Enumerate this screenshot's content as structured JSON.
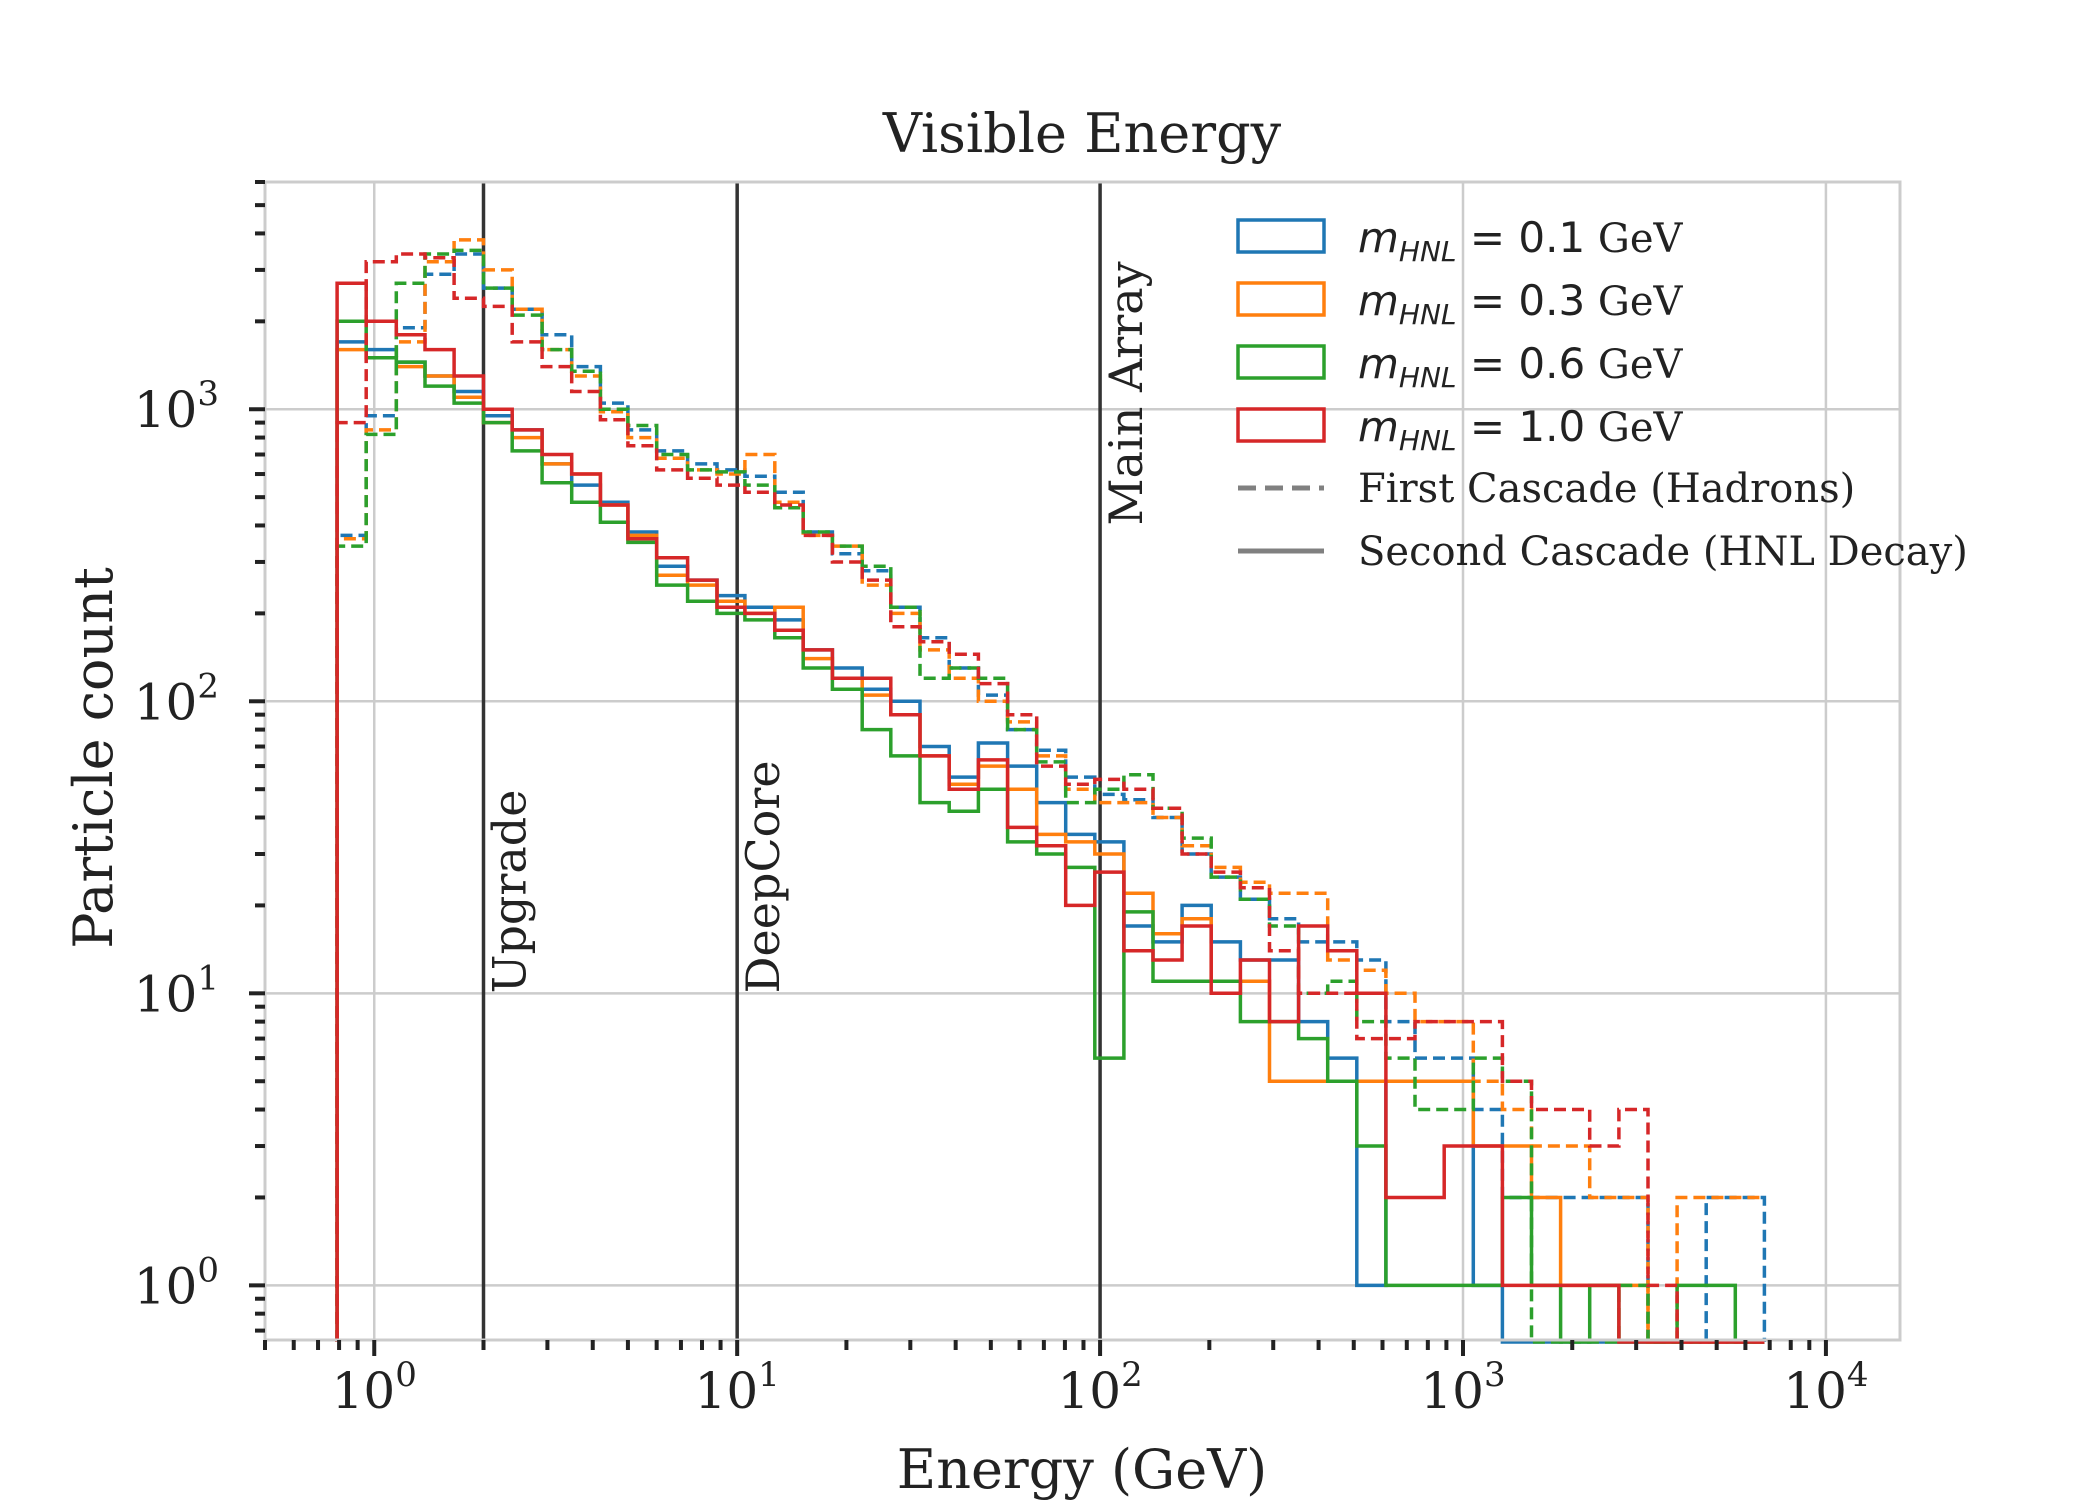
{
  "chart_data": {
    "type": "line",
    "title": "Visible Energy",
    "xlabel": "Energy (GeV)",
    "ylabel": "Particle count",
    "x_scale": "log",
    "y_scale": "log",
    "xlim": [
      0.5,
      16000
    ],
    "ylim": [
      0.65,
      6000
    ],
    "grid": true,
    "legend_position": "top-right",
    "x_ticks": [
      {
        "value": 1,
        "base": "10",
        "exp": "0"
      },
      {
        "value": 10,
        "base": "10",
        "exp": "1"
      },
      {
        "value": 100,
        "base": "10",
        "exp": "2"
      },
      {
        "value": 1000,
        "base": "10",
        "exp": "3"
      },
      {
        "value": 10000,
        "base": "10",
        "exp": "4"
      }
    ],
    "y_ticks": [
      {
        "value": 1,
        "base": "10",
        "exp": "0"
      },
      {
        "value": 10,
        "base": "10",
        "exp": "1"
      },
      {
        "value": 100,
        "base": "10",
        "exp": "2"
      },
      {
        "value": 1000,
        "base": "10",
        "exp": "3"
      }
    ],
    "vlines": [
      {
        "x": 2,
        "label": "Upgrade",
        "label_y": 10
      },
      {
        "x": 10,
        "label": "DeepCore",
        "label_y": 10
      },
      {
        "x": 100,
        "label": "Main Array",
        "label_y": 400
      }
    ],
    "legend": [
      {
        "type": "mass",
        "prefix": "m",
        "sub": "HNL",
        "value": " = 0.1",
        "unit": " GeV",
        "color": "#1f77b4"
      },
      {
        "type": "mass",
        "prefix": "m",
        "sub": "HNL",
        "value": " = 0.3",
        "unit": " GeV",
        "color": "#ff7f0e"
      },
      {
        "type": "mass",
        "prefix": "m",
        "sub": "HNL",
        "value": " = 0.6",
        "unit": " GeV",
        "color": "#2ca02c"
      },
      {
        "type": "mass",
        "prefix": "m",
        "sub": "HNL",
        "value": " = 1.0",
        "unit": " GeV",
        "color": "#d62728"
      },
      {
        "type": "style",
        "label": "First Cascade (Hadrons)",
        "dash": true,
        "color": "#808080"
      },
      {
        "type": "style",
        "label": "Second Cascade (HNL Decay)",
        "dash": false,
        "color": "#808080"
      }
    ],
    "bin_edges": [
      0.79,
      0.95,
      1.15,
      1.38,
      1.66,
      2.0,
      2.4,
      2.9,
      3.5,
      4.2,
      5.0,
      6.0,
      7.3,
      8.8,
      10.5,
      12.7,
      15.2,
      18.3,
      22.1,
      26.5,
      31.9,
      38.4,
      46.2,
      55.6,
      66.9,
      80.4,
      96.7,
      116.3,
      139.9,
      168.3,
      202.4,
      243.5,
      292.9,
      352.3,
      423.8,
      509.8,
      613.2,
      737.6,
      887.3,
      1067.3,
      1283.8,
      1544.3,
      1857.6,
      2234.6,
      2688,
      3233.3,
      3889.3,
      4678.3,
      5627.4,
      6769.1
    ],
    "series": [
      {
        "color": "#1f77b4",
        "dashed": true,
        "values": [
          370,
          950,
          1900,
          2900,
          3400,
          2600,
          2200,
          1800,
          1400,
          1050,
          850,
          720,
          650,
          620,
          590,
          520,
          380,
          320,
          280,
          210,
          165,
          130,
          105,
          80,
          68,
          55,
          48,
          46,
          40,
          30,
          25,
          21,
          18,
          15,
          15,
          13,
          8,
          6,
          6,
          4,
          2,
          2,
          2,
          2,
          2,
          0,
          0,
          2,
          2,
          0
        ]
      },
      {
        "color": "#1f77b4",
        "dashed": false,
        "values": [
          1700,
          1600,
          1450,
          1300,
          1150,
          950,
          850,
          650,
          550,
          480,
          380,
          290,
          260,
          230,
          210,
          190,
          150,
          130,
          110,
          100,
          70,
          55,
          72,
          60,
          45,
          35,
          33,
          17,
          15,
          20,
          15,
          13,
          13,
          8,
          6,
          1,
          5,
          5,
          5,
          1,
          0,
          0,
          0,
          0,
          0,
          0,
          0,
          0,
          0,
          0
        ]
      },
      {
        "color": "#ff7f0e",
        "dashed": true,
        "values": [
          360,
          850,
          1700,
          3200,
          3800,
          3000,
          2200,
          1600,
          1300,
          980,
          800,
          680,
          620,
          600,
          700,
          480,
          370,
          340,
          250,
          200,
          150,
          120,
          100,
          85,
          65,
          50,
          45,
          45,
          40,
          32,
          27,
          24,
          22,
          22,
          13,
          12,
          10,
          8,
          8,
          5,
          4,
          3,
          3,
          2,
          2,
          0,
          2,
          2,
          2,
          2
        ]
      },
      {
        "color": "#ff7f0e",
        "dashed": false,
        "values": [
          1600,
          1500,
          1400,
          1300,
          1100,
          900,
          800,
          650,
          600,
          470,
          370,
          270,
          250,
          220,
          200,
          210,
          140,
          120,
          105,
          90,
          65,
          52,
          60,
          50,
          35,
          33,
          30,
          22,
          16,
          18,
          11,
          11,
          5,
          5,
          5,
          5,
          5,
          5,
          5,
          3,
          3,
          2,
          1,
          1,
          1,
          0,
          0,
          0,
          0,
          0
        ]
      },
      {
        "color": "#2ca02c",
        "dashed": true,
        "values": [
          340,
          820,
          2700,
          3400,
          3500,
          2600,
          2100,
          1600,
          1350,
          1000,
          880,
          700,
          620,
          610,
          550,
          460,
          380,
          340,
          290,
          210,
          120,
          130,
          120,
          80,
          62,
          45,
          50,
          56,
          43,
          34,
          25,
          21,
          17,
          10,
          11,
          8,
          6,
          4,
          4,
          6,
          5,
          0,
          0,
          0,
          1,
          0,
          0,
          0,
          0,
          0
        ]
      },
      {
        "color": "#2ca02c",
        "dashed": false,
        "values": [
          2000,
          1500,
          1450,
          1200,
          1050,
          900,
          720,
          560,
          480,
          410,
          350,
          250,
          220,
          200,
          190,
          165,
          130,
          110,
          80,
          65,
          45,
          42,
          50,
          33,
          30,
          27,
          6,
          19,
          11,
          11,
          11,
          8,
          8,
          7,
          5,
          3,
          1,
          1,
          1,
          1,
          2,
          1,
          0,
          1,
          0,
          0,
          1,
          1,
          0,
          0
        ]
      },
      {
        "color": "#d62728",
        "dashed": true,
        "values": [
          900,
          3200,
          3400,
          3300,
          2400,
          2250,
          1700,
          1400,
          1150,
          920,
          750,
          620,
          580,
          550,
          520,
          470,
          370,
          300,
          260,
          180,
          160,
          145,
          115,
          90,
          60,
          52,
          54,
          50,
          43,
          30,
          26,
          23,
          14,
          10,
          10,
          7,
          7,
          8,
          8,
          8,
          5,
          4,
          4,
          3,
          4,
          1,
          0,
          0,
          0,
          0
        ]
      },
      {
        "color": "#d62728",
        "dashed": false,
        "values": [
          2700,
          2000,
          1800,
          1600,
          1300,
          1000,
          850,
          700,
          600,
          470,
          360,
          310,
          260,
          210,
          200,
          175,
          150,
          120,
          120,
          90,
          65,
          50,
          63,
          37,
          32,
          20,
          26,
          14,
          13,
          17,
          10,
          13,
          8,
          17,
          14,
          10,
          2,
          2,
          3,
          3,
          1,
          1,
          1,
          1,
          0,
          0,
          0,
          0,
          0,
          0
        ]
      }
    ]
  }
}
